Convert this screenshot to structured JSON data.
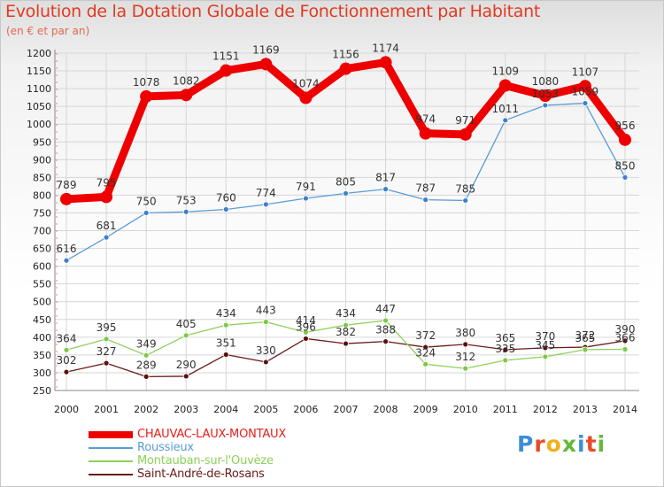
{
  "header": {
    "title": "Evolution de la Dotation Globale de Fonctionnement par Habitant",
    "subtitle": "(en € et par an)"
  },
  "logo": {
    "text": "Proxiti",
    "colors": [
      "#3c8fd6",
      "#e94a2a",
      "#f2b01e",
      "#67b83a",
      "#3c8fd6",
      "#e94a2a",
      "#67b83a"
    ]
  },
  "chart_data": {
    "type": "line",
    "x": [
      2000,
      2001,
      2002,
      2003,
      2004,
      2005,
      2006,
      2007,
      2008,
      2009,
      2010,
      2011,
      2012,
      2013,
      2014
    ],
    "ylim": [
      250,
      1200
    ],
    "ytick_step": 50,
    "grid": true,
    "legend_position": "bottom-left",
    "series": [
      {
        "name": "CHAUVAC-LAUX-MONTAUX",
        "color": "#ee0000",
        "values": [
          789,
          795,
          1078,
          1082,
          1151,
          1169,
          1074,
          1156,
          1174,
          974,
          971,
          1109,
          1080,
          1107,
          956
        ]
      },
      {
        "name": "Roussieux",
        "color": "#5b9bd5",
        "values": [
          616,
          681,
          750,
          753,
          760,
          774,
          791,
          805,
          817,
          787,
          785,
          1011,
          1053,
          1059,
          850
        ]
      },
      {
        "name": "Montauban-sur-l'Ouvèze",
        "color": "#8ed05a",
        "values": [
          364,
          395,
          349,
          405,
          434,
          443,
          414,
          434,
          447,
          324,
          312,
          335,
          345,
          365,
          366
        ]
      },
      {
        "name": "Saint-André-de-Rosans",
        "color": "#6b1a1a",
        "values": [
          302,
          327,
          289,
          290,
          351,
          330,
          396,
          382,
          388,
          372,
          380,
          365,
          370,
          372,
          390
        ]
      }
    ]
  }
}
